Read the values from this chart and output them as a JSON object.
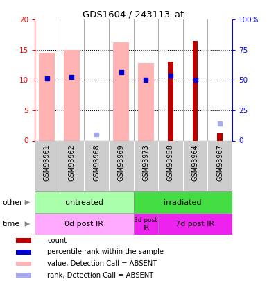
{
  "title": "GDS1604 / 243113_at",
  "samples": [
    "GSM93961",
    "GSM93962",
    "GSM93968",
    "GSM93969",
    "GSM93973",
    "GSM93958",
    "GSM93964",
    "GSM93967"
  ],
  "ylim_left": [
    0,
    20
  ],
  "ylim_right": [
    0,
    100
  ],
  "yticks_left": [
    0,
    5,
    10,
    15,
    20
  ],
  "yticks_right": [
    0,
    25,
    50,
    75,
    100
  ],
  "ytick_labels_right": [
    "0",
    "25",
    "50",
    "75",
    "100%"
  ],
  "count_values": [
    null,
    null,
    null,
    null,
    null,
    13.0,
    16.5,
    1.2
  ],
  "pink_bar_values": [
    14.5,
    15.0,
    null,
    16.3,
    12.8,
    null,
    null,
    null
  ],
  "pink_bar_color": "#ffb3b3",
  "rank_absent_values": [
    null,
    null,
    1.0,
    null,
    null,
    null,
    null,
    2.8
  ],
  "rank_absent_color": "#aaaaee",
  "blue_dot_values": [
    10.3,
    10.5,
    null,
    11.3,
    10.0,
    10.7,
    10.0,
    null
  ],
  "blue_dot_color": "#0000cc",
  "dark_red_color": "#bb0000",
  "grid_dotted_at": [
    5,
    10,
    15
  ],
  "groups_other": [
    {
      "label": "untreated",
      "span": 4,
      "color": "#aaffaa"
    },
    {
      "label": "irradiated",
      "span": 4,
      "color": "#44dd44"
    }
  ],
  "groups_time": [
    {
      "label": "0d post IR",
      "span": 4,
      "color": "#ffaaff"
    },
    {
      "label": "3d post\nIR",
      "span": 1,
      "color": "#ee22ee"
    },
    {
      "label": "7d post IR",
      "span": 3,
      "color": "#ee22ee"
    }
  ],
  "label_other": "other",
  "label_time": "time",
  "legend_items": [
    {
      "color": "#bb0000",
      "label": "count"
    },
    {
      "color": "#0000cc",
      "label": "percentile rank within the sample"
    },
    {
      "color": "#ffb3b3",
      "label": "value, Detection Call = ABSENT"
    },
    {
      "color": "#aaaaee",
      "label": "rank, Detection Call = ABSENT"
    }
  ],
  "xtick_bg_color": "#cccccc",
  "border_color": "#888888"
}
